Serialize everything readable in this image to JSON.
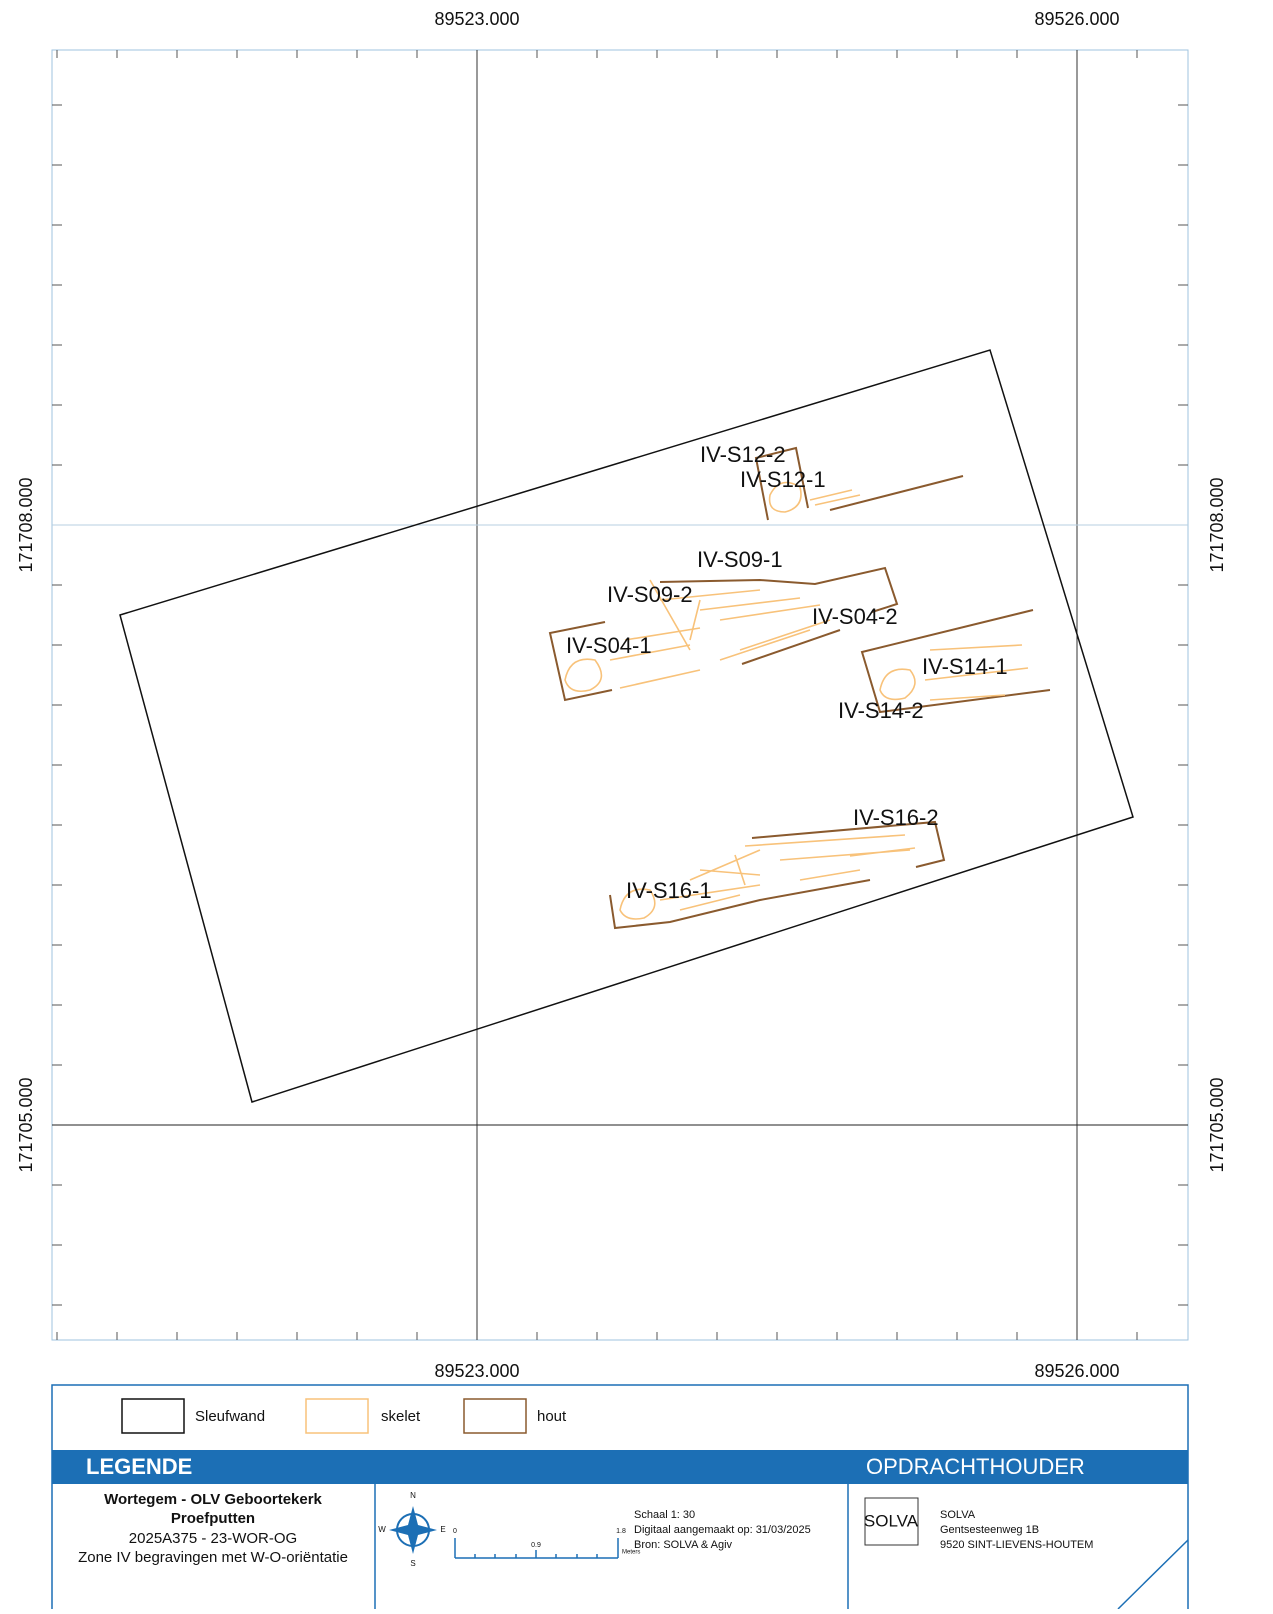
{
  "map": {
    "x_labels": [
      "89523.000",
      "89526.000"
    ],
    "y_labels": [
      "171708.000",
      "171705.000"
    ],
    "features": [
      "IV-S12-2",
      "IV-S12-1",
      "IV-S09-1",
      "IV-S09-2",
      "IV-S04-2",
      "IV-S04-1",
      "IV-S14-1",
      "IV-S14-2",
      "IV-S16-2",
      "IV-S16-1"
    ]
  },
  "legend": {
    "items": [
      "Sleufwand",
      "skelet",
      "hout"
    ],
    "heading": "LEGENDE",
    "client_heading": "OPDRACHTHOUDER"
  },
  "title_block": {
    "lines": [
      "Wortegem - OLV Geboortekerk",
      "Proefputten",
      "2025A375 - 23-WOR-OG",
      "Zone IV begravingen met W-O-oriëntatie"
    ],
    "compass": [
      "N",
      "E",
      "S",
      "W"
    ],
    "scale_labels": [
      "0",
      "0.9",
      "1.8",
      "Meters"
    ],
    "scale_info": [
      "Schaal 1: 30",
      "Digitaal aangemaakt op: 31/03/2025",
      "Bron: SOLVA & Agiv"
    ],
    "logo": "SOLVA",
    "address": [
      "SOLVA",
      "Gentsesteenweg 1B",
      "9520 SINT-LIEVENS-HOUTEM"
    ]
  }
}
